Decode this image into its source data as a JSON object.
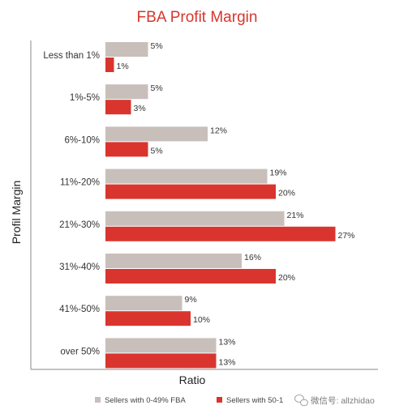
{
  "chart_data": {
    "type": "bar",
    "orientation": "horizontal",
    "title": "FBA Profit Margin",
    "xlabel": "Ratio",
    "ylabel": "Profil Margin",
    "xlim": [
      0,
      27
    ],
    "grid": false,
    "legend_position": "bottom",
    "categories": [
      "Less than 1%",
      "1%-5%",
      "6%-10%",
      "11%-20%",
      "21%-30%",
      "31%-40%",
      "41%-50%",
      "over 50%"
    ],
    "series": [
      {
        "name": "Sellers with 0-49% FBA",
        "color": "#c8bfbb",
        "values": [
          5,
          5,
          12,
          19,
          21,
          16,
          9,
          13
        ],
        "labels": [
          "5%",
          "5%",
          "12%",
          "19%",
          "21%",
          "16%",
          "9%",
          "13%"
        ]
      },
      {
        "name": "Sellers with 50-1",
        "color": "#d9352e",
        "values": [
          1,
          3,
          5,
          20,
          27,
          20,
          10,
          13
        ],
        "labels": [
          "1%",
          "3%",
          "5%",
          "20%",
          "27%",
          "20%",
          "10%",
          "13%"
        ]
      }
    ]
  },
  "watermark": {
    "text": "微信号: allzhidao",
    "icon": "wechat-icon"
  }
}
